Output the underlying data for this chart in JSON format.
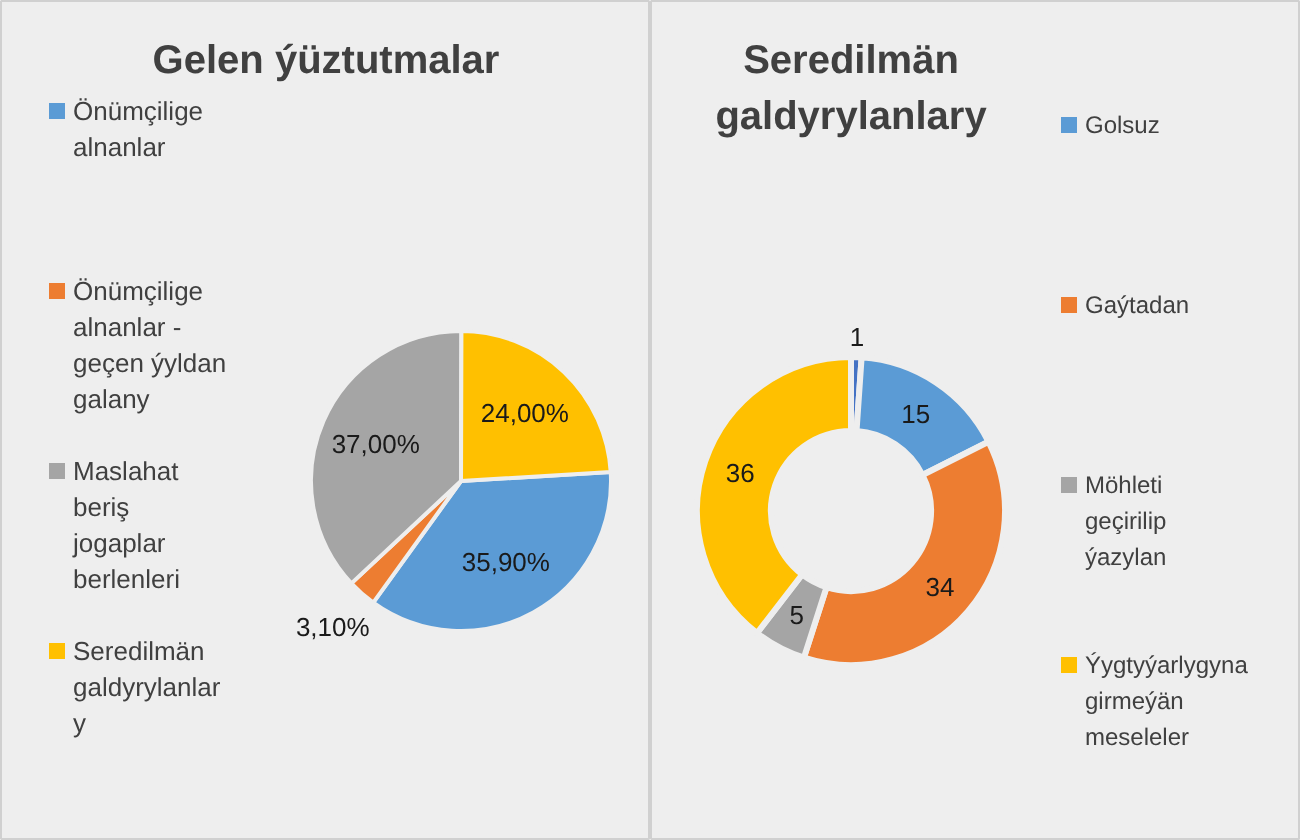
{
  "chart_data": [
    {
      "type": "pie",
      "title": "Gelen ýüztutmalar",
      "legend": "left",
      "categories": [
        "Önümçilige alnanlar",
        "Önümçilige alnanlar - geçen ýyldan galany",
        "Maslahat beriş jogaplar berlenleri",
        "Seredilmän galdyrylanlary"
      ],
      "values": [
        35.9,
        3.1,
        37.0,
        24.0
      ],
      "value_labels": [
        "35,90%",
        "3,10%",
        "37,00%",
        "24,00%"
      ],
      "colors": [
        "#5b9bd5",
        "#ed7d31",
        "#a5a5a5",
        "#ffc000"
      ]
    },
    {
      "type": "donut",
      "title": "Seredilmän galdyrylanlary",
      "legend": "right",
      "data_labels": true,
      "categories": [
        null,
        "Golsuz",
        "Gaýtadan",
        "Möhleti geçirilip ýazylan",
        "Ýygtyýarlygyna girmeýän meseleler"
      ],
      "values": [
        1,
        15,
        34,
        5,
        36
      ],
      "colors": [
        "#4472c4",
        "#5b9bd5",
        "#ed7d31",
        "#a5a5a5",
        "#ffc000"
      ]
    }
  ]
}
